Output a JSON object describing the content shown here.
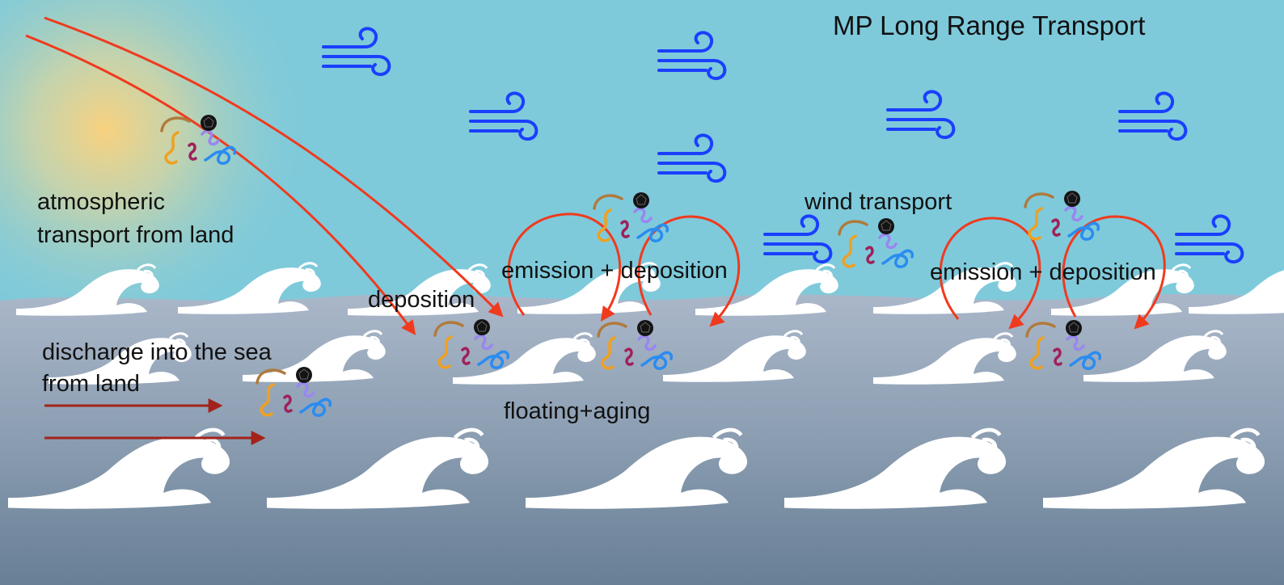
{
  "title": "MP Long Range Transport",
  "labels": {
    "atmospheric_line1": "atmospheric",
    "atmospheric_line2": "transport from land",
    "discharge_line1": "discharge into the sea",
    "discharge_line2": "from land",
    "deposition": "deposition",
    "floating_aging": "floating+aging",
    "wind_transport": "wind transport",
    "emission_deposition_1": "emission + deposition",
    "emission_deposition_2": "emission + deposition"
  },
  "colors": {
    "sky": "#7ecadb",
    "sea_top": "#aab7c9",
    "sea_bottom": "#687f95",
    "sun": "#ffd27a",
    "wind_icon": "#1a3fff",
    "cycle_arrow": "#f03a1e",
    "discharge_arrow": "#a3231a",
    "wave": "#ffffff"
  },
  "icons": {
    "wind": "wind-icon",
    "microplastic_cluster": "microplastic-cluster-icon",
    "wave": "wave-icon",
    "sun": "sun-icon"
  }
}
